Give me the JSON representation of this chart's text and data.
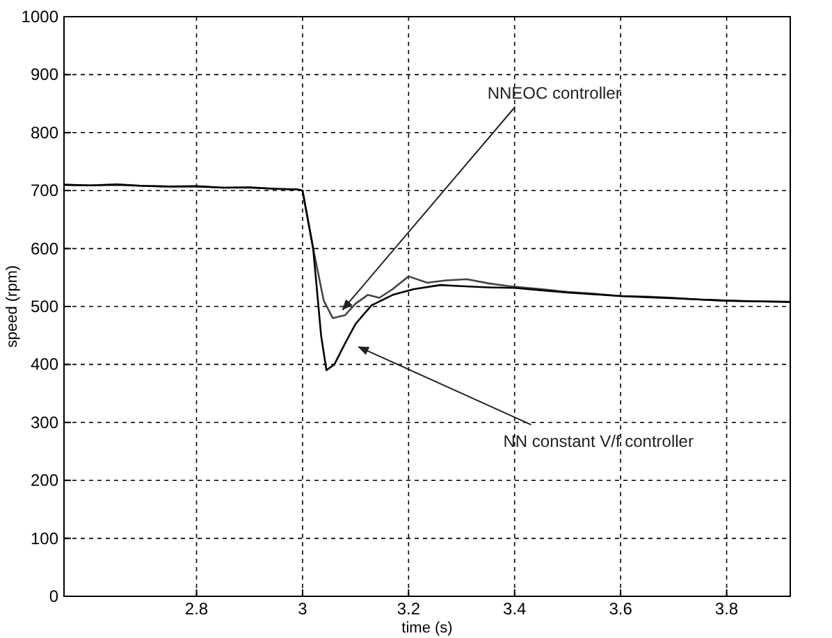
{
  "chart_data": {
    "type": "line",
    "xlabel": "time (s)",
    "ylabel": "speed (rpm)",
    "xlim": [
      2.55,
      3.92
    ],
    "xticks": [
      2.8,
      3,
      3.2,
      3.4,
      3.6,
      3.8
    ],
    "ylim": [
      0,
      1000
    ],
    "yticks": [
      0,
      100,
      200,
      300,
      400,
      500,
      600,
      700,
      800,
      900,
      1000
    ],
    "grid": true,
    "marker": "none",
    "line_style": "solid",
    "series": [
      {
        "color": "#444444",
        "x": [
          2.55,
          2.6,
          2.65,
          2.7,
          2.75,
          2.8,
          2.85,
          2.9,
          2.95,
          2.99,
          3.0,
          3.02,
          3.04,
          3.057,
          3.08,
          3.1,
          3.123,
          3.145,
          3.17,
          3.2,
          3.235,
          3.27,
          3.31,
          3.35,
          3.39,
          3.45,
          3.5,
          3.55,
          3.6,
          3.65,
          3.7,
          3.75,
          3.8,
          3.85,
          3.92
        ],
        "values": [
          710,
          709,
          711,
          708,
          707,
          708,
          705,
          706,
          703,
          702,
          700,
          600,
          510,
          480,
          485,
          505,
          520,
          515,
          530,
          552,
          541,
          545,
          547,
          540,
          535,
          530,
          525,
          522,
          518,
          517,
          515,
          512,
          510,
          509,
          508
        ]
      },
      {
        "color": "#000000",
        "x": [
          2.55,
          2.6,
          2.65,
          2.7,
          2.75,
          2.8,
          2.85,
          2.9,
          2.95,
          2.99,
          3.0,
          3.02,
          3.035,
          3.045,
          3.06,
          3.08,
          3.1,
          3.13,
          3.17,
          3.21,
          3.26,
          3.3,
          3.35,
          3.4,
          3.45,
          3.5,
          3.55,
          3.6,
          3.65,
          3.7,
          3.75,
          3.8,
          3.85,
          3.92
        ],
        "values": [
          710,
          709,
          710,
          708,
          707,
          707,
          705,
          705,
          703,
          702,
          700,
          600,
          450,
          390,
          400,
          436,
          470,
          502,
          520,
          530,
          537,
          535,
          533,
          532,
          528,
          524,
          521,
          518,
          516,
          514,
          512,
          510,
          509,
          508
        ]
      }
    ],
    "annotations": [
      {
        "text": "NNEOC controller",
        "x": 3.06,
        "y": 485
      },
      {
        "text": "NN constant V/f controller",
        "x": 3.09,
        "y": 440
      }
    ]
  }
}
